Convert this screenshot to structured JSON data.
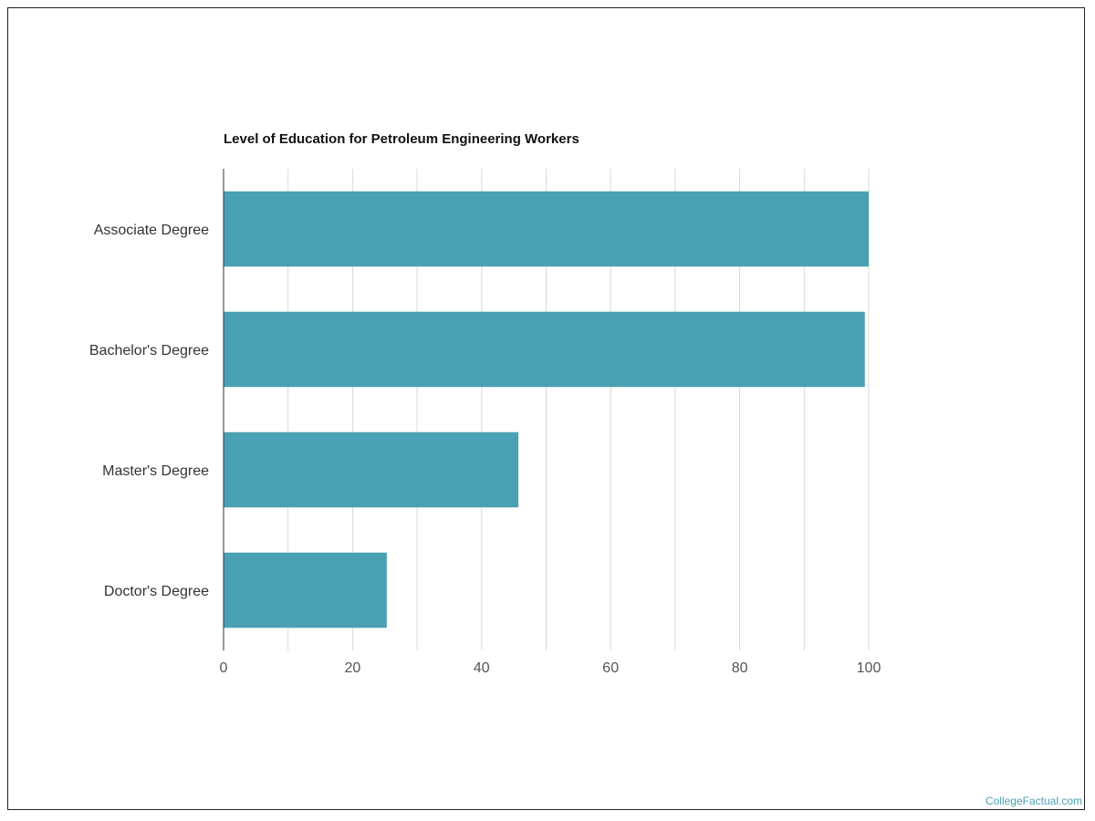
{
  "watermark": "CollegeFactual.com",
  "colors": {
    "bar": "#4aa1b3",
    "grid": "#d9d9d9",
    "axis": "#333333"
  },
  "chart_data": {
    "type": "bar",
    "orientation": "horizontal",
    "title": "Level of Education for Petroleum Engineering Workers",
    "categories": [
      "Associate Degree",
      "Bachelor's Degree",
      "Master's Degree",
      "Doctor's Degree"
    ],
    "values": [
      100,
      99.4,
      45.7,
      25.3
    ],
    "xticks": [
      0,
      20,
      40,
      60,
      80,
      100
    ],
    "xlim": [
      0,
      100
    ],
    "grid": true,
    "legend": "none"
  }
}
